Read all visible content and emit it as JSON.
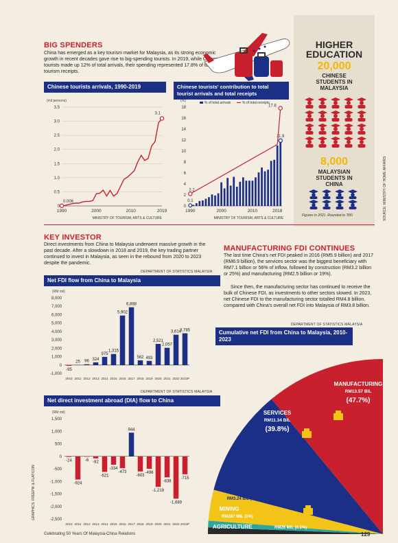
{
  "big_spenders": {
    "title": "BIG SPENDERS",
    "body": "China has emerged as a key tourism market for Malaysia, as its strong economic growth in recent decades gave rise to big-spending tourists. In 2019, while Chinese tourists made up 12% of total arrivals, their spending represented 17.8% of total tourism receipts."
  },
  "higher_education": {
    "title": "HIGHER EDUCATION",
    "chinese_count": "20,000",
    "chinese_label": "CHINESE STUDENTS IN MALAYSIA",
    "malaysian_count": "8,000",
    "malaysian_label": "MALAYSIAN STUDENTS IN CHINA",
    "note": "Figures in 2021. Rounded to '000",
    "source": "SOURCE: MINISTRY OF HOME AFFAIRS",
    "colors": {
      "chinese": "#c8202c",
      "malaysian": "#1c2f86",
      "accent": "#f2b705"
    }
  },
  "key_investor": {
    "title": "KEY INVESTOR",
    "body": "Direct investments from China to Malaysia underwent massive growth in the past decade. After a slowdown in 2018 and 2019, the key trading partner continued to invest in Malaysia, as seen in the rebound from 2020 to 2023 despite the pandemic."
  },
  "manufacturing_fdi": {
    "title": "MANUFACTURING FDI CONTINUES",
    "body1": "The last time China's net FDI peaked in 2016 (RM5.9 billion) and 2017 (RM6.9 billion), the services sector was the biggest beneficiary with RM7.1 billion or 56% of inflow, followed by construction (RM3.2 billion or 25%) and manufacturing (RM2.5 billion or 19%).",
    "body2": "Since then, the manufacturing sector has continued to receive the bulk of Chinese FDI, as investments to other sectors slowed. In 2023, net Chinese FDI to the manufacturing sector totalled RM4.8 billion, compared with China's overall net FDI into Malaysia of RM3.8 billion."
  },
  "credits": "GRAPHICS: FREEPIK & FLATICON",
  "footer": {
    "left": "Celebrating 50 Years Of Malaysia-China Relations",
    "page": "129"
  },
  "chart_data": [
    {
      "type": "line",
      "title": "Chinese tourists arrivals, 1990-2019",
      "ylabel": "(mil persons)",
      "source": "MINISTRY OF TOURISM, ARTS & CULTURE",
      "ylim": [
        0,
        3.5
      ],
      "yticks": [
        "0",
        "0.5",
        "1.0",
        "1.5",
        "2.0",
        "2.5",
        "3.0",
        "3.5"
      ],
      "xticks": [
        "1990",
        "2000",
        "2010",
        "2019"
      ],
      "x": [
        1990,
        1991,
        1992,
        1993,
        1994,
        1995,
        1996,
        1997,
        1998,
        1999,
        2000,
        2001,
        2002,
        2003,
        2004,
        2005,
        2006,
        2007,
        2008,
        2009,
        2010,
        2011,
        2012,
        2013,
        2014,
        2015,
        2016,
        2017,
        2018,
        2019
      ],
      "values": [
        0.006,
        0.02,
        0.05,
        0.08,
        0.1,
        0.1,
        0.14,
        0.16,
        0.16,
        0.19,
        0.43,
        0.45,
        0.56,
        0.35,
        0.55,
        0.35,
        0.44,
        0.69,
        0.94,
        1.02,
        1.13,
        1.25,
        1.56,
        1.79,
        1.61,
        1.68,
        2.12,
        2.28,
        2.94,
        3.1
      ],
      "labels": {
        "first": "0.006",
        "last": "3.1"
      },
      "color": "#c8202c"
    },
    {
      "type": "bar+line",
      "title": "Chinese tourists' contribution to total tourist arrivals and total receipts",
      "ylabel": "(%)",
      "source": "MINISTRY OF TOURISM, ARTS & CULTURE",
      "ylim": [
        0,
        18
      ],
      "yticks": [
        "0",
        "2",
        "4",
        "6",
        "8",
        "10",
        "12",
        "14",
        "16",
        "18"
      ],
      "xticks": [
        "1990",
        "2000",
        "2010",
        "2018"
      ],
      "x": [
        1990,
        1991,
        1992,
        1993,
        1994,
        1995,
        1996,
        1997,
        1998,
        1999,
        2000,
        2001,
        2002,
        2003,
        2004,
        2005,
        2006,
        2007,
        2008,
        2009,
        2010,
        2011,
        2012,
        2013,
        2014,
        2015,
        2016,
        2017,
        2018,
        2019
      ],
      "series": [
        {
          "name": "% of total arrivals",
          "color": "#1c2f86",
          "values": [
            0.1,
            0.2,
            0.5,
            0.9,
            1.0,
            1.3,
            1.6,
            2.1,
            1.9,
            2.3,
            4.3,
            3.2,
            5.1,
            3.7,
            5.3,
            3.5,
            4.4,
            5.2,
            4.6,
            4.6,
            4.6,
            5.2,
            6.1,
            7.0,
            6.3,
            6.6,
            8.2,
            8.4,
            11.0,
            11.9
          ]
        },
        {
          "name": "% of total receipts",
          "color": "#c8202c",
          "values": [
            2.2,
            null,
            null,
            null,
            null,
            null,
            null,
            null,
            null,
            null,
            null,
            null,
            null,
            null,
            null,
            null,
            null,
            null,
            null,
            null,
            null,
            null,
            null,
            null,
            null,
            null,
            null,
            null,
            11.2,
            17.8
          ]
        }
      ],
      "labels": {
        "start_receipts": "2.2",
        "start_arrivals": "0.1",
        "end_receipts": "17.8",
        "end_arrivals": "11.9"
      }
    },
    {
      "type": "bar",
      "title": "Net FDI flow from China to Malaysia",
      "ylabel": "(RM mil)",
      "source": "DEPARTMENT OF STATISTICS MALAYSIA",
      "ylim": [
        -1000,
        8000
      ],
      "yticks": [
        "8,000",
        "7,000",
        "6,000",
        "5,000",
        "4,000",
        "3,000",
        "2,000",
        "1,000",
        "0",
        "-1,000"
      ],
      "categories": [
        "2010",
        "2011",
        "2012",
        "2013",
        "2014",
        "2015",
        "2016",
        "2017",
        "2018",
        "2019",
        "2020",
        "2021",
        "2022",
        "2023P"
      ],
      "values": [
        -95,
        25,
        96,
        324,
        975,
        1315,
        5902,
        6888,
        562,
        493,
        2521,
        2057,
        3614,
        3785
      ],
      "value_labels": [
        "-95",
        "25",
        "96",
        "324",
        "975",
        "1,315",
        "5,902",
        "6,888",
        "562",
        "493",
        "2,521",
        "2,057",
        "3,614",
        "3,785"
      ],
      "colors": {
        "default": "#1c2f86",
        "negative": "#c8202c"
      }
    },
    {
      "type": "bar",
      "title": "Net direct investment abroad (DIA) flow to China",
      "ylabel": "(RM mil)",
      "source": "DEPARTMENT OF STATISTICS MALAYSIA",
      "ylim": [
        -2500,
        1500
      ],
      "yticks": [
        "1,500",
        "1,000",
        "500",
        "0",
        "-500",
        "-1,000",
        "-1,500",
        "-2,000",
        "-2,500"
      ],
      "categories": [
        "2010",
        "2011",
        "2012",
        "2013",
        "2014",
        "2015",
        "2016",
        "2017",
        "2018",
        "2019",
        "2020",
        "2021",
        "2022",
        "2023P"
      ],
      "values": [
        -24,
        -924,
        -6,
        -82,
        -621,
        -334,
        -473,
        944,
        -603,
        -498,
        -1219,
        -838,
        -1689,
        -715
      ],
      "value_labels": [
        "-24",
        "-924",
        "-6",
        "-82",
        "-621",
        "-334",
        "-473",
        "944",
        "-603",
        "-498",
        "-1,219",
        "-838",
        "-1,689",
        "-715"
      ],
      "colors": {
        "positive": "#1c2f86",
        "negative": "#c8202c"
      }
    },
    {
      "type": "pie",
      "title": "Cumulative net FDI from China to Malaysia, 2010-2023",
      "source": "DEPARTMENT OF STATISTICS MALAYSIA",
      "slices": [
        {
          "name": "MANUFACTURING",
          "value_label": "RM13.57 BIL",
          "pct_label": "(47.7%)",
          "value": 13.57,
          "pct": 47.7,
          "color": "#c8202c"
        },
        {
          "name": "SERVICES",
          "value_label": "RM11.34 BIL",
          "pct_label": "(39.8%)",
          "value": 11.34,
          "pct": 39.8,
          "color": "#1c2f86"
        },
        {
          "name": "CONSTRUCTION",
          "value_label": "RM3.24 BIL (11.4%)",
          "value": 3.24,
          "pct": 11.4,
          "color": "#f2c418"
        },
        {
          "name": "MINING",
          "value_label": "RM287 MIL (1%)",
          "value": 0.287,
          "pct": 1.0,
          "color": "#2ba6a0"
        },
        {
          "name": "AGRICULTURE",
          "value_label": "RM26 MIL (0.1%)",
          "value": 0.026,
          "pct": 0.1,
          "color": "#2a2a2a"
        }
      ]
    }
  ]
}
